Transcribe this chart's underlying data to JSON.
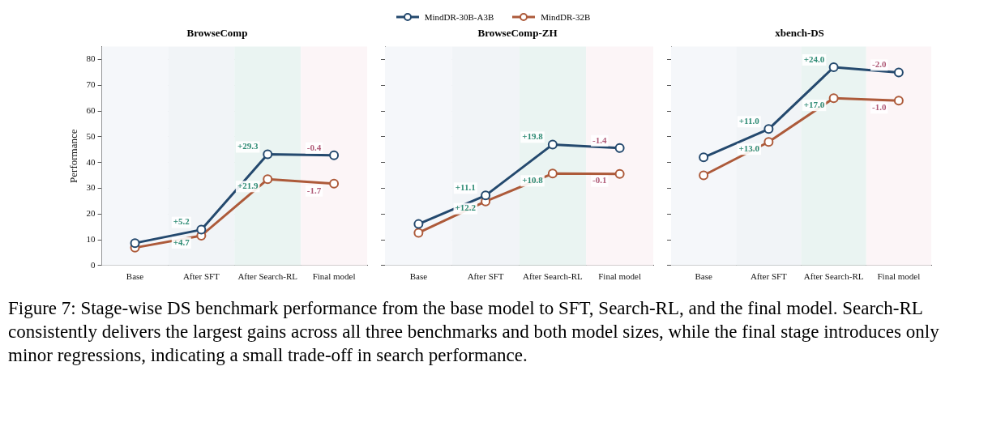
{
  "chart_data": [
    {
      "type": "line",
      "title": "BrowseComp",
      "ylabel": "Performance",
      "categories": [
        "Base",
        "After SFT",
        "After Search-RL",
        "Final model"
      ],
      "ylim": [
        0,
        85
      ],
      "yticks": [
        0,
        10,
        20,
        30,
        40,
        50,
        60,
        70,
        80
      ],
      "grid": "y",
      "legend": "top",
      "marker": "circle",
      "line_style": "solid",
      "bands": [
        {
          "axis": "x",
          "from": "Base",
          "to": "Base",
          "color": "#f5f7fa"
        },
        {
          "axis": "x",
          "from": "After SFT",
          "to": "After SFT",
          "color": "#f1f4f7"
        },
        {
          "axis": "x",
          "from": "After Search-RL",
          "to": "After Search-RL",
          "color": "#eaf4f2"
        },
        {
          "axis": "x",
          "from": "Final model",
          "to": "Final model",
          "color": "#fcf5f7"
        }
      ],
      "series": [
        {
          "name": "MindDR-30B-A3B",
          "color": "#24496e",
          "values": [
            8.7,
            13.9,
            43.2,
            42.8
          ]
        },
        {
          "name": "MindDR-32B",
          "color": "#ad5a3a",
          "values": [
            6.9,
            11.6,
            33.5,
            31.8
          ]
        }
      ],
      "annotations": [
        {
          "text": "+5.2",
          "x": "After SFT",
          "y": 13.9
        },
        {
          "text": "+4.7",
          "x": "After SFT",
          "y": 11.6
        },
        {
          "text": "+29.3",
          "x": "After Search-RL",
          "y": 43.2
        },
        {
          "text": "+21.9",
          "x": "After Search-RL",
          "y": 33.5
        },
        {
          "text": "-0.4",
          "x": "Final model",
          "y": 42.8
        },
        {
          "text": "-1.7",
          "x": "Final model",
          "y": 31.8
        },
        "Figure 7: Stage-wise DS benchmark performance from the base model to SFT, Search-RL, and the final model. Search-RL consistently delivers the largest gains across all three benchmarks and both model sizes, while the final stage introduces only minor regressions, indicating a small trade-off in search performance."
      ]
    },
    {
      "type": "line",
      "title": "BrowseComp-ZH",
      "categories": [
        "Base",
        "After SFT",
        "After Search-RL",
        "Final model"
      ],
      "ylim": [
        0,
        85
      ],
      "yticks": [
        0,
        10,
        20,
        30,
        40,
        50,
        60,
        70,
        80
      ],
      "tick_labels": "x",
      "grid": "y",
      "marker": "circle",
      "line_style": "solid",
      "bands": [
        {
          "axis": "x",
          "from": "Base",
          "to": "Base",
          "color": "#f5f7fa"
        },
        {
          "axis": "x",
          "from": "After SFT",
          "to": "After SFT",
          "color": "#f1f4f7"
        },
        {
          "axis": "x",
          "from": "After Search-RL",
          "to": "After Search-RL",
          "color": "#eaf4f2"
        },
        {
          "axis": "x",
          "from": "Final model",
          "to": "Final model",
          "color": "#fcf5f7"
        }
      ],
      "series": [
        {
          "color": "#24496e",
          "values": [
            16.1,
            27.2,
            47.0,
            45.6
          ]
        },
        {
          "color": "#ad5a3a",
          "values": [
            12.7,
            24.9,
            35.7,
            35.6
          ]
        }
      ],
      "annotations": [
        {
          "text": "+11.1",
          "x": "After SFT",
          "y": 27.2
        },
        {
          "text": "+12.2",
          "x": "After SFT",
          "y": 24.9
        },
        {
          "text": "+19.8",
          "x": "After Search-RL",
          "y": 47.0
        },
        {
          "text": "+10.8",
          "x": "After Search-RL",
          "y": 35.7
        },
        {
          "text": "-1.4",
          "x": "Final model",
          "y": 45.6
        },
        {
          "text": "-0.1",
          "x": "Final model",
          "y": 35.6
        }
      ]
    },
    {
      "type": "line",
      "title": "xbench-DS",
      "categories": [
        "Base",
        "After SFT",
        "After Search-RL",
        "Final model"
      ],
      "ylim": [
        0,
        85
      ],
      "yticks": [
        0,
        10,
        20,
        30,
        40,
        50,
        60,
        70,
        80
      ],
      "tick_labels": "x",
      "grid": "y",
      "marker": "circle",
      "line_style": "solid",
      "bands": [
        {
          "axis": "x",
          "from": "Base",
          "to": "Base",
          "color": "#f5f7fa"
        },
        {
          "axis": "x",
          "from": "After SFT",
          "to": "After SFT",
          "color": "#f1f4f7"
        },
        {
          "axis": "x",
          "from": "After Search-RL",
          "to": "After Search-RL",
          "color": "#eaf4f2"
        },
        {
          "axis": "x",
          "from": "Final model",
          "to": "Final model",
          "color": "#fcf5f7"
        }
      ],
      "series": [
        {
          "color": "#24496e",
          "values": [
            42,
            53,
            77,
            75
          ]
        },
        {
          "color": "#ad5a3a",
          "values": [
            35,
            48,
            65,
            64
          ]
        }
      ],
      "annotations": [
        {
          "text": "+11.0",
          "x": "After SFT",
          "y": 53
        },
        {
          "text": "+13.0",
          "x": "After SFT",
          "y": 48
        },
        {
          "text": "+24.0",
          "x": "After Search-RL",
          "y": 77
        },
        {
          "text": "+17.0",
          "x": "After Search-RL",
          "y": 65
        },
        {
          "text": "-2.0",
          "x": "Final model",
          "y": 75
        },
        {
          "text": "-1.0",
          "x": "Final model",
          "y": 64
        }
      ]
    }
  ]
}
